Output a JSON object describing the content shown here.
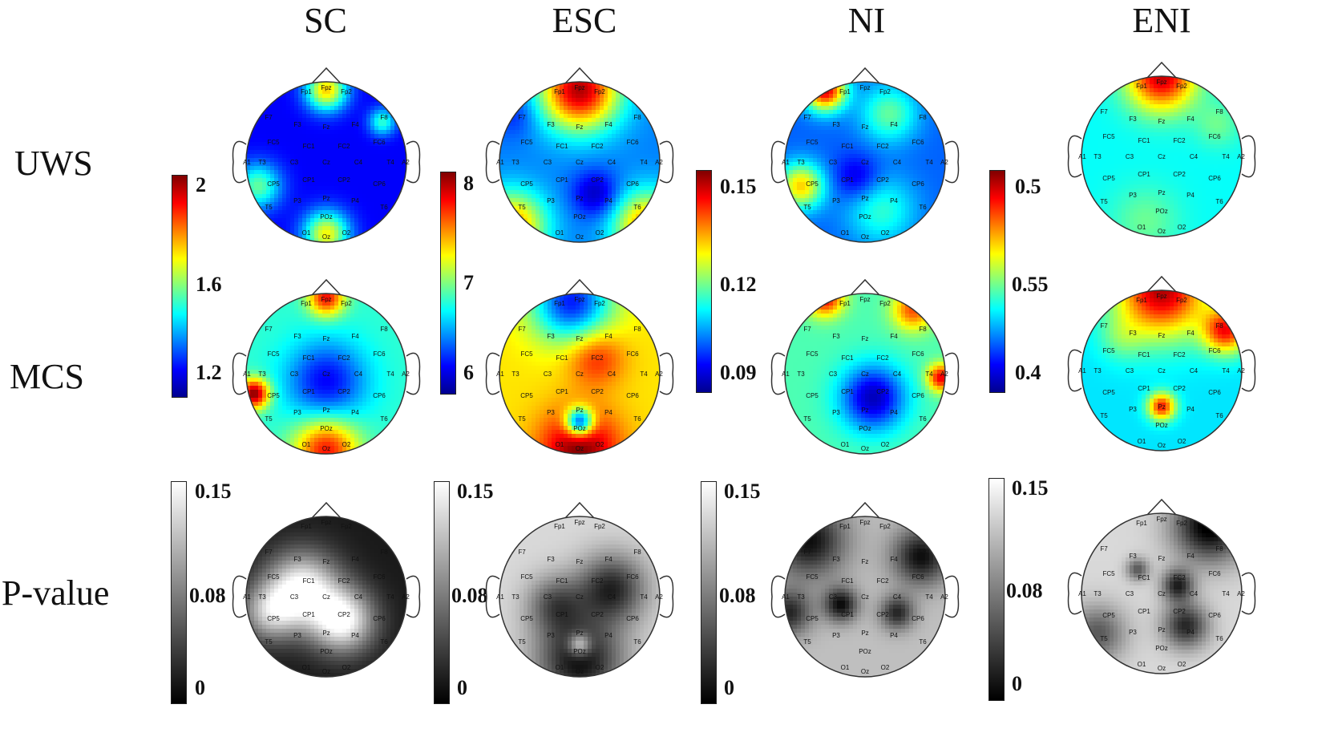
{
  "columns": [
    "SC",
    "ESC",
    "NI",
    "ENI"
  ],
  "rows": [
    "UWS",
    "MCS",
    "P-value"
  ],
  "colorbars": {
    "jet": [
      {
        "ticks": [
          "2",
          "1.6",
          "1.2"
        ]
      },
      {
        "ticks": [
          "8",
          "7",
          "6"
        ]
      },
      {
        "ticks": [
          "0.15",
          "0.12",
          "0.09"
        ]
      },
      {
        "ticks": [
          "0.5",
          "0.55",
          "0.4"
        ]
      }
    ],
    "gray": [
      {
        "ticks": [
          "0.15",
          "0.08",
          "0"
        ]
      },
      {
        "ticks": [
          "0.15",
          "0.08",
          "0"
        ]
      },
      {
        "ticks": [
          "0.15",
          "0.08",
          "0"
        ]
      },
      {
        "ticks": [
          "0.15",
          "0.08",
          "0"
        ]
      }
    ]
  },
  "colormaps": {
    "jet": [
      "#00008f",
      "#0000ff",
      "#0080ff",
      "#00ffff",
      "#80ff80",
      "#ffff00",
      "#ff8000",
      "#ff0000",
      "#800000"
    ],
    "gray": [
      "#000000",
      "#ffffff"
    ]
  },
  "electrodes": [
    "Fp1",
    "Fpz",
    "Fp2",
    "F7",
    "F3",
    "Fz",
    "F4",
    "F8",
    "FC5",
    "FC1",
    "FC2",
    "FC6",
    "A1",
    "T3",
    "C3",
    "Cz",
    "C4",
    "T4",
    "A2",
    "CP5",
    "CP1",
    "CP2",
    "CP6",
    "T5",
    "P3",
    "Pz",
    "P4",
    "T6",
    "POz",
    "O1",
    "Oz",
    "O2"
  ],
  "maps": [
    [
      {
        "base": 0.12,
        "blobs": [
          [
            0,
            0.9,
            0.55,
            0.18
          ],
          [
            -0.85,
            -0.3,
            0.35,
            0.2
          ],
          [
            0,
            -0.9,
            0.5,
            0.2
          ],
          [
            0.7,
            0.5,
            0.3,
            0.12
          ]
        ]
      },
      {
        "base": 0.25,
        "blobs": [
          [
            0,
            0.9,
            0.7,
            0.35
          ],
          [
            -0.8,
            0.6,
            -0.1,
            0.2
          ],
          [
            0.85,
            -0.8,
            0.5,
            0.3
          ],
          [
            -0.85,
            -0.8,
            0.5,
            0.3
          ],
          [
            0.2,
            -0.4,
            -0.2,
            0.2
          ]
        ]
      },
      {
        "base": 0.22,
        "blobs": [
          [
            -0.5,
            0.9,
            0.7,
            0.18
          ],
          [
            -0.8,
            -0.3,
            0.45,
            0.2
          ],
          [
            0.3,
            0.6,
            0.25,
            0.25
          ],
          [
            0.2,
            -0.6,
            0.2,
            0.3
          ],
          [
            -0.1,
            -0.2,
            -0.15,
            0.2
          ]
        ]
      },
      {
        "base": 0.38,
        "blobs": [
          [
            0,
            1.0,
            0.55,
            0.3
          ],
          [
            -0.2,
            -0.8,
            0.1,
            0.3
          ],
          [
            0.7,
            0.4,
            0.1,
            0.2
          ]
        ]
      }
    ],
    [
      {
        "base": 0.42,
        "blobs": [
          [
            0,
            0.95,
            0.45,
            0.16
          ],
          [
            -0.9,
            -0.25,
            0.58,
            0.13
          ],
          [
            0,
            -0.95,
            0.45,
            0.28
          ],
          [
            0,
            -0.1,
            -0.3,
            0.35
          ]
        ]
      },
      {
        "base": 0.65,
        "blobs": [
          [
            -0.1,
            0.9,
            -0.5,
            0.35
          ],
          [
            0,
            -0.95,
            0.35,
            0.35
          ],
          [
            0,
            -0.6,
            -0.6,
            0.12
          ],
          [
            0.2,
            0.2,
            0.2,
            0.25
          ]
        ]
      },
      {
        "base": 0.45,
        "blobs": [
          [
            -0.5,
            0.95,
            0.45,
            0.16
          ],
          [
            0.6,
            0.8,
            0.35,
            0.18
          ],
          [
            0.95,
            -0.05,
            0.45,
            0.12
          ],
          [
            0.1,
            -0.3,
            -0.4,
            0.28
          ]
        ]
      },
      {
        "base": 0.35,
        "blobs": [
          [
            0,
            1.0,
            0.6,
            0.4
          ],
          [
            0.8,
            0.5,
            0.5,
            0.2
          ],
          [
            0.0,
            -0.45,
            0.5,
            0.12
          ],
          [
            -0.5,
            0.4,
            0.1,
            0.2
          ]
        ]
      }
    ],
    [
      {
        "base": 0.1,
        "blobs": [
          [
            -0.3,
            0.1,
            0.9,
            0.32
          ],
          [
            0.2,
            -0.3,
            0.9,
            0.28
          ],
          [
            -0.7,
            -0.2,
            0.6,
            0.25
          ]
        ]
      },
      {
        "base": 0.85,
        "blobs": [
          [
            0,
            -0.8,
            -0.8,
            0.38
          ],
          [
            0.4,
            0.1,
            -0.7,
            0.3
          ],
          [
            -0.3,
            -0.1,
            -0.5,
            0.25
          ],
          [
            0,
            -0.6,
            0.6,
            0.1
          ]
        ]
      },
      {
        "base": 0.75,
        "blobs": [
          [
            -0.7,
            0.7,
            -0.7,
            0.32
          ],
          [
            0.7,
            0.5,
            -0.7,
            0.25
          ],
          [
            -0.3,
            -0.1,
            -0.7,
            0.15
          ],
          [
            0.4,
            -0.2,
            -0.6,
            0.15
          ],
          [
            -0.95,
            -0.2,
            -0.6,
            0.2
          ]
        ]
      },
      {
        "base": 0.85,
        "blobs": [
          [
            0.6,
            0.85,
            -0.9,
            0.32
          ],
          [
            0.2,
            0.1,
            -0.7,
            0.14
          ],
          [
            0.3,
            -0.4,
            -0.7,
            0.2
          ],
          [
            -0.8,
            -0.5,
            -0.5,
            0.25
          ],
          [
            -0.3,
            0.3,
            -0.5,
            0.1
          ]
        ]
      }
    ]
  ]
}
